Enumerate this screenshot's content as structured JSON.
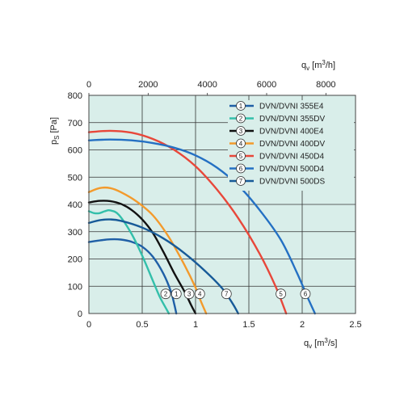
{
  "chart_data": {
    "type": "line",
    "title": "",
    "xlabel": "q_v [m3/s]",
    "xlabel_parts": {
      "base": "q",
      "sub": "v",
      "unit_open": " [m",
      "unit_sup": "3",
      "unit_close": "/s]"
    },
    "x2label_parts": {
      "base": "q",
      "sub": "v",
      "unit_open": " [m",
      "unit_sup": "3",
      "unit_close": "/h]"
    },
    "ylabel_parts": {
      "base": "p",
      "sub": "S",
      "unit": " [Pa]"
    },
    "xlim": [
      0,
      2.5
    ],
    "ylim": [
      0,
      800
    ],
    "x2lim": [
      0,
      9000
    ],
    "xticks": [
      "0",
      "0.5",
      "1",
      "1.5",
      "2",
      "2.5"
    ],
    "x2ticks": [
      "0",
      "2000",
      "4000",
      "6000",
      "8000"
    ],
    "yticks": [
      "0",
      "100",
      "200",
      "300",
      "400",
      "500",
      "600",
      "700",
      "800"
    ],
    "grid": true,
    "legend_position": "top-right",
    "background": "#d9eeea",
    "series": [
      {
        "id": "1",
        "name": "DVN/DVNI 355E4",
        "color": "#1f5fa6",
        "points": [
          [
            0,
            262
          ],
          [
            0.1,
            268
          ],
          [
            0.2,
            272
          ],
          [
            0.3,
            271
          ],
          [
            0.4,
            263
          ],
          [
            0.5,
            245
          ],
          [
            0.6,
            208
          ],
          [
            0.7,
            145
          ],
          [
            0.77,
            80
          ],
          [
            0.8,
            35
          ],
          [
            0.82,
            0
          ]
        ]
      },
      {
        "id": "2",
        "name": "DVN/DVNI 355DV",
        "color": "#33bfaa",
        "points": [
          [
            0,
            375
          ],
          [
            0.05,
            368
          ],
          [
            0.1,
            368
          ],
          [
            0.15,
            375
          ],
          [
            0.2,
            378
          ],
          [
            0.28,
            362
          ],
          [
            0.4,
            292
          ],
          [
            0.5,
            212
          ],
          [
            0.6,
            120
          ],
          [
            0.66,
            65
          ],
          [
            0.7,
            35
          ],
          [
            0.75,
            0
          ]
        ]
      },
      {
        "id": "3",
        "name": "DVN/DVNI 400E4",
        "color": "#111111",
        "points": [
          [
            0,
            407
          ],
          [
            0.1,
            413
          ],
          [
            0.2,
            412
          ],
          [
            0.3,
            402
          ],
          [
            0.4,
            380
          ],
          [
            0.5,
            345
          ],
          [
            0.6,
            295
          ],
          [
            0.7,
            225
          ],
          [
            0.8,
            148
          ],
          [
            0.9,
            78
          ],
          [
            0.96,
            30
          ],
          [
            1.0,
            0
          ]
        ]
      },
      {
        "id": "4",
        "name": "DVN/DVNI 400DV",
        "color": "#f39a2c",
        "points": [
          [
            0,
            445
          ],
          [
            0.1,
            460
          ],
          [
            0.2,
            460
          ],
          [
            0.3,
            445
          ],
          [
            0.45,
            410
          ],
          [
            0.6,
            360
          ],
          [
            0.75,
            280
          ],
          [
            0.9,
            175
          ],
          [
            1.0,
            95
          ],
          [
            1.05,
            45
          ],
          [
            1.1,
            0
          ]
        ]
      },
      {
        "id": "5",
        "name": "DVN/DVNI 450D4",
        "color": "#e8473a",
        "points": [
          [
            0,
            665
          ],
          [
            0.2,
            670
          ],
          [
            0.4,
            663
          ],
          [
            0.6,
            640
          ],
          [
            0.8,
            600
          ],
          [
            1.0,
            540
          ],
          [
            1.2,
            455
          ],
          [
            1.4,
            350
          ],
          [
            1.6,
            220
          ],
          [
            1.75,
            100
          ],
          [
            1.85,
            0
          ]
        ]
      },
      {
        "id": "6",
        "name": "DVN/DVNI 500D4",
        "color": "#2470c3",
        "points": [
          [
            0,
            635
          ],
          [
            0.2,
            638
          ],
          [
            0.4,
            635
          ],
          [
            0.6,
            625
          ],
          [
            0.8,
            608
          ],
          [
            1.0,
            580
          ],
          [
            1.2,
            535
          ],
          [
            1.4,
            470
          ],
          [
            1.6,
            380
          ],
          [
            1.8,
            270
          ],
          [
            1.95,
            150
          ],
          [
            2.05,
            60
          ],
          [
            2.12,
            0
          ]
        ]
      },
      {
        "id": "7",
        "name": "DVN/DVNI 500DS",
        "color": "#175a98",
        "points": [
          [
            0,
            332
          ],
          [
            0.1,
            342
          ],
          [
            0.2,
            345
          ],
          [
            0.3,
            340
          ],
          [
            0.5,
            315
          ],
          [
            0.7,
            275
          ],
          [
            0.9,
            220
          ],
          [
            1.1,
            152
          ],
          [
            1.25,
            92
          ],
          [
            1.35,
            35
          ],
          [
            1.4,
            0
          ]
        ]
      }
    ],
    "curve_markers": [
      {
        "label": "2",
        "x": 0.72,
        "y": 72
      },
      {
        "label": "1",
        "x": 0.82,
        "y": 72
      },
      {
        "label": "3",
        "x": 0.94,
        "y": 72
      },
      {
        "label": "4",
        "x": 1.04,
        "y": 72
      },
      {
        "label": "7",
        "x": 1.29,
        "y": 72
      },
      {
        "label": "5",
        "x": 1.8,
        "y": 72
      },
      {
        "label": "6",
        "x": 2.03,
        "y": 72
      }
    ]
  }
}
